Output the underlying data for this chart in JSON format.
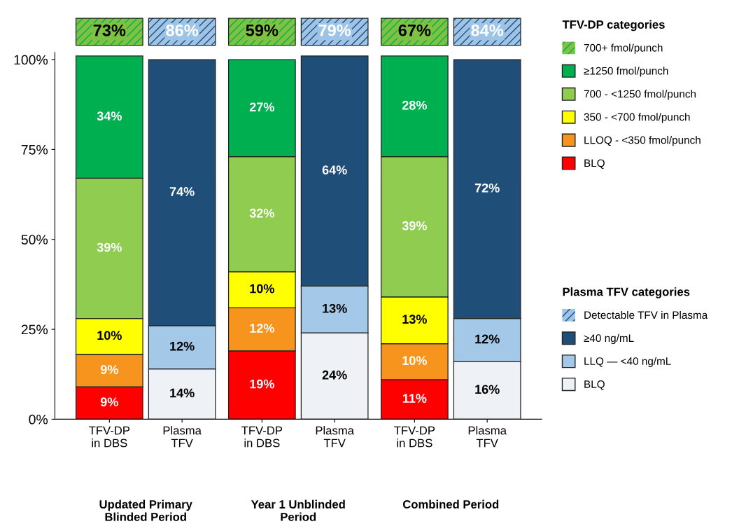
{
  "chart_data": {
    "type": "bar",
    "stacked": true,
    "categories": [
      "TFV-DP\nin DBS",
      "Plasma\nTFV",
      "TFV-DP\nin DBS",
      "Plasma\nTFV",
      "TFV-DP\nin DBS",
      "Plasma\nTFV"
    ],
    "series": [
      {
        "name": "BLQ",
        "color": "#ff0000",
        "values": [
          9,
          null,
          19,
          null,
          11,
          null
        ],
        "value_labels": [
          "9%",
          null,
          "19%",
          null,
          "11%",
          null
        ]
      },
      {
        "name": "LLOQ - <350 fmol/punch",
        "color": "#f7941d",
        "values": [
          9,
          null,
          12,
          null,
          10,
          null
        ],
        "value_labels": [
          "9%",
          null,
          "12%",
          null,
          "10%",
          null
        ]
      },
      {
        "name": "350 - <700 fmol/punch",
        "color": "#ffff00",
        "values": [
          10,
          null,
          10,
          null,
          13,
          null
        ],
        "value_labels": [
          "10%",
          null,
          "10%",
          null,
          "13%",
          null
        ]
      },
      {
        "name": "700 - <1250 fmol/punch",
        "color": "#8fcc4f",
        "values": [
          39,
          null,
          32,
          null,
          39,
          null
        ],
        "value_labels": [
          "39%",
          null,
          "32%",
          null,
          "39%",
          null
        ]
      },
      {
        "name": "≥1250 fmol/punch",
        "color": "#00b050",
        "values": [
          34,
          null,
          27,
          null,
          28,
          null
        ],
        "value_labels": [
          "34%",
          null,
          "27%",
          null,
          "28%",
          null
        ]
      },
      {
        "name": "700+ fmol/punch",
        "color": "#7dc242",
        "values": [
          null,
          null,
          null,
          null,
          null,
          null
        ]
      },
      {
        "name": "BLQ",
        "color": "#eef2f7",
        "values": [
          null,
          14,
          null,
          24,
          null,
          16
        ],
        "value_labels": [
          null,
          "14%",
          null,
          "24%",
          null,
          "16%"
        ]
      },
      {
        "name": "LLQ — <40 ng/mL",
        "color": "#a4c8e8",
        "values": [
          null,
          12,
          null,
          13,
          null,
          12
        ],
        "value_labels": [
          null,
          "12%",
          null,
          "13%",
          null,
          "12%"
        ]
      },
      {
        "name": "≥40 ng/mL",
        "color": "#1f4e79",
        "values": [
          null,
          74,
          null,
          64,
          null,
          72
        ],
        "value_labels": [
          null,
          "74%",
          null,
          "64%",
          null,
          "72%"
        ]
      },
      {
        "name": "Detectable TFV in Plasma",
        "color": "#9dc3e6",
        "values": [
          null,
          null,
          null,
          null,
          null,
          null
        ]
      }
    ],
    "ylim": [
      0,
      102
    ],
    "yticks": [
      {
        "value": 0,
        "label": "0%"
      },
      {
        "value": 25,
        "label": "25%"
      },
      {
        "value": 50,
        "label": "50%"
      },
      {
        "value": 75,
        "label": "75%"
      },
      {
        "value": 100,
        "label": "100%"
      }
    ],
    "annotations": [
      "TFV-DP categories",
      "Plasma TFV categories",
      "Updated Primary\nBlinded Period",
      "Year 1 Unblinded\nPeriod",
      "Combined Period",
      "73%",
      "86%",
      "59%",
      "79%",
      "67%",
      "84%"
    ],
    "legend": "right",
    "grid": false
  }
}
